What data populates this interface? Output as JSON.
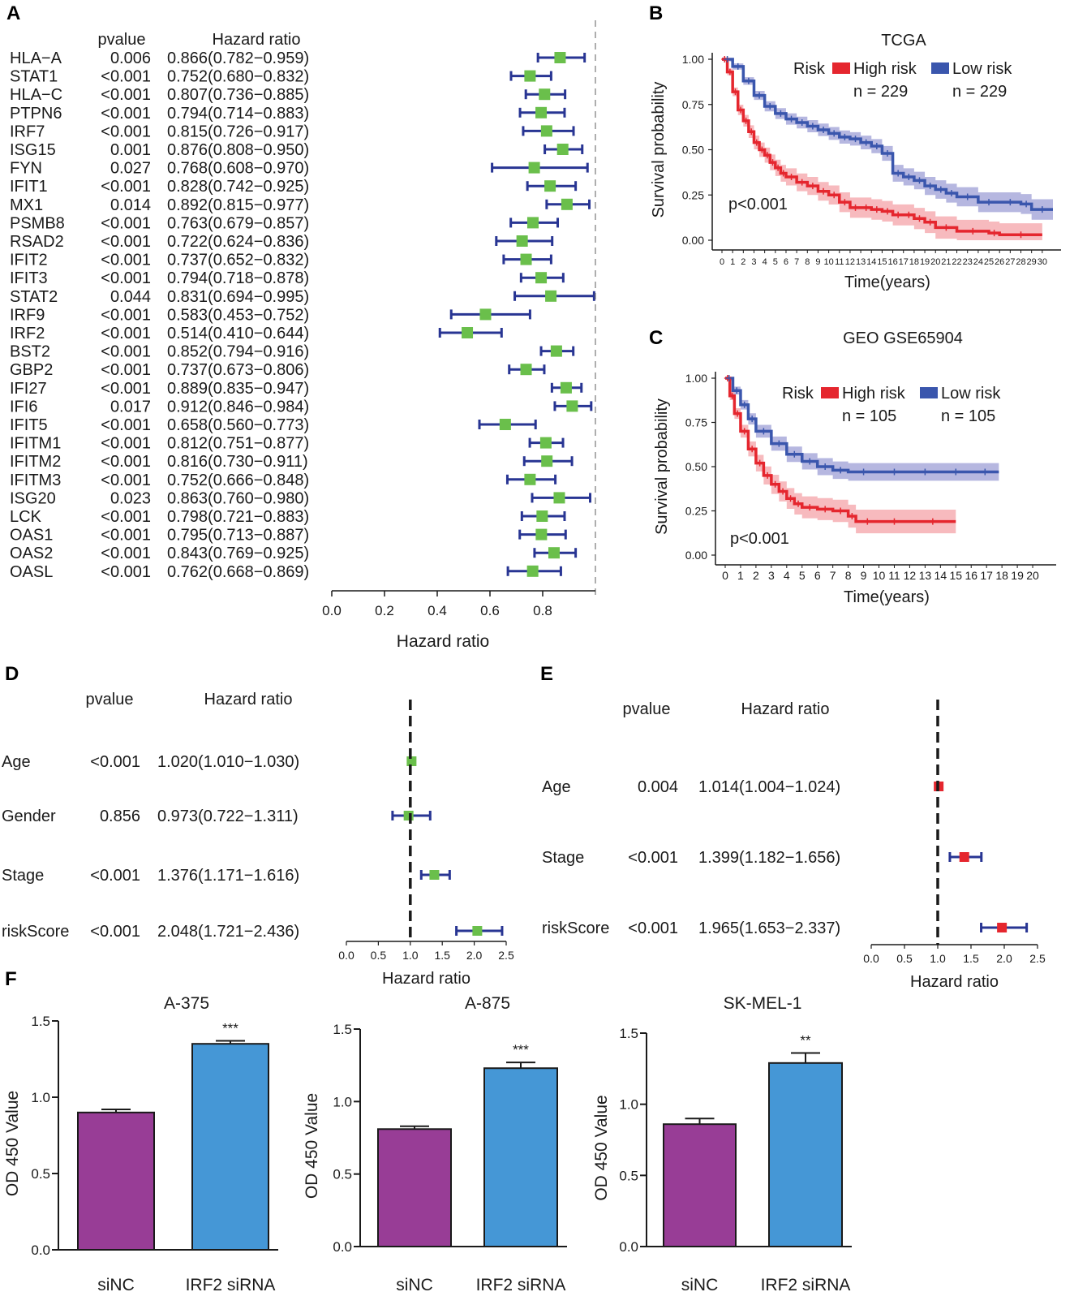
{
  "colors": {
    "axis": "#1a1a1a",
    "ci_line": "#283593",
    "box_green": "#6abf4b",
    "box_red": "#e5262e",
    "high_risk": "#e5262e",
    "high_risk_band": "#f4a3a8",
    "low_risk": "#3a56ad",
    "low_risk_band": "#9d9fd6",
    "bar_sinc": "#983d96",
    "bar_irf2": "#4597d6"
  },
  "panels": {
    "A": {
      "label": "A",
      "col_pvalue": "pvalue",
      "col_hr": "Hazard ratio",
      "xlabel": "Hazard ratio",
      "ticks": [
        "0.0",
        "0.2",
        "0.4",
        "0.6",
        "0.8"
      ],
      "xlim": [
        0.0,
        1.0
      ],
      "ref_line": 1.0,
      "rows": [
        {
          "gene": "HLA−A",
          "p": "0.006",
          "hr_text": "0.866(0.782−0.959)",
          "hr": 0.866,
          "lo": 0.782,
          "hi": 0.959
        },
        {
          "gene": "STAT1",
          "p": "<0.001",
          "hr_text": "0.752(0.680−0.832)",
          "hr": 0.752,
          "lo": 0.68,
          "hi": 0.832
        },
        {
          "gene": "HLA−C",
          "p": "<0.001",
          "hr_text": "0.807(0.736−0.885)",
          "hr": 0.807,
          "lo": 0.736,
          "hi": 0.885
        },
        {
          "gene": "PTPN6",
          "p": "<0.001",
          "hr_text": "0.794(0.714−0.883)",
          "hr": 0.794,
          "lo": 0.714,
          "hi": 0.883
        },
        {
          "gene": "IRF7",
          "p": "<0.001",
          "hr_text": "0.815(0.726−0.917)",
          "hr": 0.815,
          "lo": 0.726,
          "hi": 0.917
        },
        {
          "gene": "ISG15",
          "p": "0.001",
          "hr_text": "0.876(0.808−0.950)",
          "hr": 0.876,
          "lo": 0.808,
          "hi": 0.95
        },
        {
          "gene": "FYN",
          "p": "0.027",
          "hr_text": "0.768(0.608−0.970)",
          "hr": 0.768,
          "lo": 0.608,
          "hi": 0.97
        },
        {
          "gene": "IFIT1",
          "p": "<0.001",
          "hr_text": "0.828(0.742−0.925)",
          "hr": 0.828,
          "lo": 0.742,
          "hi": 0.925
        },
        {
          "gene": "MX1",
          "p": "0.014",
          "hr_text": "0.892(0.815−0.977)",
          "hr": 0.892,
          "lo": 0.815,
          "hi": 0.977
        },
        {
          "gene": "PSMB8",
          "p": "<0.001",
          "hr_text": "0.763(0.679−0.857)",
          "hr": 0.763,
          "lo": 0.679,
          "hi": 0.857
        },
        {
          "gene": "RSAD2",
          "p": "<0.001",
          "hr_text": "0.722(0.624−0.836)",
          "hr": 0.722,
          "lo": 0.624,
          "hi": 0.836
        },
        {
          "gene": "IFIT2",
          "p": "<0.001",
          "hr_text": "0.737(0.652−0.832)",
          "hr": 0.737,
          "lo": 0.652,
          "hi": 0.832
        },
        {
          "gene": "IFIT3",
          "p": "<0.001",
          "hr_text": "0.794(0.718−0.878)",
          "hr": 0.794,
          "lo": 0.718,
          "hi": 0.878
        },
        {
          "gene": "STAT2",
          "p": "0.044",
          "hr_text": "0.831(0.694−0.995)",
          "hr": 0.831,
          "lo": 0.694,
          "hi": 0.995
        },
        {
          "gene": "IRF9",
          "p": "<0.001",
          "hr_text": "0.583(0.453−0.752)",
          "hr": 0.583,
          "lo": 0.453,
          "hi": 0.752
        },
        {
          "gene": "IRF2",
          "p": "<0.001",
          "hr_text": "0.514(0.410−0.644)",
          "hr": 0.514,
          "lo": 0.41,
          "hi": 0.644
        },
        {
          "gene": "BST2",
          "p": "<0.001",
          "hr_text": "0.852(0.794−0.916)",
          "hr": 0.852,
          "lo": 0.794,
          "hi": 0.916
        },
        {
          "gene": "GBP2",
          "p": "<0.001",
          "hr_text": "0.737(0.673−0.806)",
          "hr": 0.737,
          "lo": 0.673,
          "hi": 0.806
        },
        {
          "gene": "IFI27",
          "p": "<0.001",
          "hr_text": "0.889(0.835−0.947)",
          "hr": 0.889,
          "lo": 0.835,
          "hi": 0.947
        },
        {
          "gene": "IFI6",
          "p": "0.017",
          "hr_text": "0.912(0.846−0.984)",
          "hr": 0.912,
          "lo": 0.846,
          "hi": 0.984
        },
        {
          "gene": "IFIT5",
          "p": "<0.001",
          "hr_text": "0.658(0.560−0.773)",
          "hr": 0.658,
          "lo": 0.56,
          "hi": 0.773
        },
        {
          "gene": "IFITM1",
          "p": "<0.001",
          "hr_text": "0.812(0.751−0.877)",
          "hr": 0.812,
          "lo": 0.751,
          "hi": 0.877
        },
        {
          "gene": "IFITM2",
          "p": "<0.001",
          "hr_text": "0.816(0.730−0.911)",
          "hr": 0.816,
          "lo": 0.73,
          "hi": 0.911
        },
        {
          "gene": "IFITM3",
          "p": "<0.001",
          "hr_text": "0.752(0.666−0.848)",
          "hr": 0.752,
          "lo": 0.666,
          "hi": 0.848
        },
        {
          "gene": "ISG20",
          "p": "0.023",
          "hr_text": "0.863(0.760−0.980)",
          "hr": 0.863,
          "lo": 0.76,
          "hi": 0.98
        },
        {
          "gene": "LCK",
          "p": "<0.001",
          "hr_text": "0.798(0.721−0.883)",
          "hr": 0.798,
          "lo": 0.721,
          "hi": 0.883
        },
        {
          "gene": "OAS1",
          "p": "<0.001",
          "hr_text": "0.795(0.713−0.887)",
          "hr": 0.795,
          "lo": 0.713,
          "hi": 0.887
        },
        {
          "gene": "OAS2",
          "p": "<0.001",
          "hr_text": "0.843(0.769−0.925)",
          "hr": 0.843,
          "lo": 0.769,
          "hi": 0.925
        },
        {
          "gene": "OASL",
          "p": "<0.001",
          "hr_text": "0.762(0.668−0.869)",
          "hr": 0.762,
          "lo": 0.668,
          "hi": 0.869
        }
      ]
    },
    "B": {
      "label": "B",
      "title": "TCGA",
      "ylabel": "Survival probability",
      "xlabel": "Time(years)",
      "yticks": [
        "0.00",
        "0.25",
        "0.50",
        "0.75",
        "1.00"
      ],
      "xticks": [
        "0",
        "1",
        "2",
        "3",
        "4",
        "5",
        "6",
        "7",
        "8",
        "9",
        "10",
        "11",
        "12",
        "13",
        "14",
        "15",
        "16",
        "17",
        "18",
        "19",
        "20",
        "21",
        "22",
        "23",
        "24",
        "25",
        "26",
        "27",
        "28",
        "29",
        "30"
      ],
      "xlim": [
        0,
        31
      ],
      "legend_title": "Risk",
      "high_label": "High risk",
      "low_label": "Low risk",
      "high_n": "n = 229",
      "low_n": "n = 229",
      "pvalue": "p<0.001",
      "high_curve": [
        [
          0,
          1
        ],
        [
          0.5,
          0.93
        ],
        [
          1,
          0.82
        ],
        [
          1.5,
          0.72
        ],
        [
          2,
          0.66
        ],
        [
          2.5,
          0.6
        ],
        [
          3,
          0.54
        ],
        [
          3.5,
          0.5
        ],
        [
          4,
          0.47
        ],
        [
          4.5,
          0.43
        ],
        [
          5,
          0.4
        ],
        [
          5.5,
          0.37
        ],
        [
          6,
          0.35
        ],
        [
          7,
          0.32
        ],
        [
          8,
          0.3
        ],
        [
          9,
          0.27
        ],
        [
          10,
          0.25
        ],
        [
          11,
          0.21
        ],
        [
          12,
          0.18
        ],
        [
          13,
          0.18
        ],
        [
          14,
          0.17
        ],
        [
          15,
          0.16
        ],
        [
          16,
          0.14
        ],
        [
          17,
          0.14
        ],
        [
          18,
          0.12
        ],
        [
          19,
          0.1
        ],
        [
          20,
          0.07
        ],
        [
          22,
          0.05
        ],
        [
          25,
          0.04
        ],
        [
          26,
          0.03
        ],
        [
          30,
          0.03
        ]
      ],
      "low_curve": [
        [
          0,
          1
        ],
        [
          1,
          0.96
        ],
        [
          2,
          0.88
        ],
        [
          3,
          0.8
        ],
        [
          4,
          0.74
        ],
        [
          5,
          0.7
        ],
        [
          6,
          0.67
        ],
        [
          7,
          0.65
        ],
        [
          8,
          0.63
        ],
        [
          9,
          0.61
        ],
        [
          10,
          0.59
        ],
        [
          11,
          0.57
        ],
        [
          12,
          0.56
        ],
        [
          13,
          0.54
        ],
        [
          14,
          0.52
        ],
        [
          15,
          0.48
        ],
        [
          16,
          0.37
        ],
        [
          17,
          0.35
        ],
        [
          18,
          0.33
        ],
        [
          19,
          0.3
        ],
        [
          20,
          0.28
        ],
        [
          21,
          0.26
        ],
        [
          22,
          0.24
        ],
        [
          24,
          0.21
        ],
        [
          26,
          0.21
        ],
        [
          28,
          0.2
        ],
        [
          29,
          0.17
        ],
        [
          31,
          0.17
        ]
      ]
    },
    "C": {
      "label": "C",
      "title": "GEO GSE65904",
      "ylabel": "Survival probability",
      "xlabel": "Time(years)",
      "yticks": [
        "0.00",
        "0.25",
        "0.50",
        "0.75",
        "1.00"
      ],
      "xticks": [
        "0",
        "1",
        "2",
        "3",
        "4",
        "5",
        "6",
        "7",
        "8",
        "9",
        "10",
        "11",
        "12",
        "13",
        "14",
        "15",
        "16",
        "17",
        "18",
        "19",
        "20"
      ],
      "xlim": [
        0,
        21
      ],
      "legend_title": "Risk",
      "high_label": "High risk",
      "low_label": "Low risk",
      "high_n": "n = 105",
      "low_n": "n = 105",
      "pvalue": "p<0.001",
      "high_curve": [
        [
          0,
          1
        ],
        [
          0.3,
          0.9
        ],
        [
          0.6,
          0.8
        ],
        [
          1,
          0.7
        ],
        [
          1.5,
          0.6
        ],
        [
          2,
          0.52
        ],
        [
          2.5,
          0.45
        ],
        [
          3,
          0.4
        ],
        [
          3.5,
          0.36
        ],
        [
          4,
          0.32
        ],
        [
          4.5,
          0.29
        ],
        [
          5,
          0.27
        ],
        [
          6,
          0.26
        ],
        [
          7,
          0.25
        ],
        [
          8,
          0.22
        ],
        [
          8.5,
          0.19
        ],
        [
          10,
          0.19
        ],
        [
          12,
          0.19
        ],
        [
          15,
          0.19
        ]
      ],
      "low_curve": [
        [
          0,
          1
        ],
        [
          0.5,
          0.93
        ],
        [
          1,
          0.85
        ],
        [
          1.5,
          0.77
        ],
        [
          2,
          0.7
        ],
        [
          3,
          0.63
        ],
        [
          4,
          0.57
        ],
        [
          5,
          0.53
        ],
        [
          6,
          0.5
        ],
        [
          7,
          0.48
        ],
        [
          8,
          0.47
        ],
        [
          10,
          0.47
        ],
        [
          12,
          0.47
        ],
        [
          14,
          0.47
        ],
        [
          16,
          0.47
        ],
        [
          17.8,
          0.47
        ]
      ]
    },
    "D": {
      "label": "D",
      "col_pvalue": "pvalue",
      "col_hr": "Hazard ratio",
      "xlabel": "Hazard ratio",
      "ticks": [
        "0.0",
        "0.5",
        "1.0",
        "1.5",
        "2.0",
        "2.5"
      ],
      "xlim": [
        0,
        2.5
      ],
      "ref_line": 1.0,
      "rows": [
        {
          "var": "Age",
          "p": "<0.001",
          "hr_text": "1.020(1.010−1.030)",
          "hr": 1.02,
          "lo": 1.01,
          "hi": 1.03
        },
        {
          "var": "Gender",
          "p": "0.856",
          "hr_text": "0.973(0.722−1.311)",
          "hr": 0.973,
          "lo": 0.722,
          "hi": 1.311
        },
        {
          "var": "Stage",
          "p": "<0.001",
          "hr_text": "1.376(1.171−1.616)",
          "hr": 1.376,
          "lo": 1.171,
          "hi": 1.616
        },
        {
          "var": "riskScore",
          "p": "<0.001",
          "hr_text": "2.048(1.721−2.436)",
          "hr": 2.048,
          "lo": 1.721,
          "hi": 2.436
        }
      ]
    },
    "E": {
      "label": "E",
      "col_pvalue": "pvalue",
      "col_hr": "Hazard ratio",
      "xlabel": "Hazard ratio",
      "ticks": [
        "0.0",
        "0.5",
        "1.0",
        "1.5",
        "2.0",
        "2.5"
      ],
      "xlim": [
        0,
        2.5
      ],
      "ref_line": 1.0,
      "rows": [
        {
          "var": "Age",
          "p": "0.004",
          "hr_text": "1.014(1.004−1.024)",
          "hr": 1.014,
          "lo": 1.004,
          "hi": 1.024
        },
        {
          "var": "Stage",
          "p": "<0.001",
          "hr_text": "1.399(1.182−1.656)",
          "hr": 1.399,
          "lo": 1.182,
          "hi": 1.656
        },
        {
          "var": "riskScore",
          "p": "<0.001",
          "hr_text": "1.965(1.653−2.337)",
          "hr": 1.965,
          "lo": 1.653,
          "hi": 2.337
        }
      ]
    },
    "F": {
      "label": "F",
      "ylabel": "OD 450 Value",
      "categories": [
        "siNC",
        "IRF2 siRNA"
      ],
      "charts": [
        {
          "title": "A-375",
          "yticks": [
            "0.0",
            "0.5",
            "1.0",
            "1.5"
          ],
          "values": [
            0.9,
            1.35
          ],
          "err": [
            0.02,
            0.02
          ],
          "sig": "***"
        },
        {
          "title": "A-875",
          "yticks": [
            "0.0",
            "0.5",
            "1.0",
            "1.5"
          ],
          "values": [
            0.81,
            1.23
          ],
          "err": [
            0.02,
            0.04
          ],
          "sig": "***"
        },
        {
          "title": "SK-MEL-1",
          "yticks": [
            "0.0",
            "0.5",
            "1.0",
            "1.5"
          ],
          "values": [
            0.86,
            1.29
          ],
          "err": [
            0.04,
            0.07
          ],
          "sig": "**"
        }
      ]
    }
  },
  "chart_data": [
    {
      "type": "forest",
      "panel": "A",
      "title": "",
      "xlabel": "Hazard ratio",
      "xlim": [
        0,
        1
      ],
      "categories": [
        "HLA−A",
        "STAT1",
        "HLA−C",
        "PTPN6",
        "IRF7",
        "ISG15",
        "FYN",
        "IFIT1",
        "MX1",
        "PSMB8",
        "RSAD2",
        "IFIT2",
        "IFIT3",
        "STAT2",
        "IRF9",
        "IRF2",
        "BST2",
        "GBP2",
        "IFI27",
        "IFI6",
        "IFIT5",
        "IFITM1",
        "IFITM2",
        "IFITM3",
        "ISG20",
        "LCK",
        "OAS1",
        "OAS2",
        "OASL"
      ],
      "values": [
        0.866,
        0.752,
        0.807,
        0.794,
        0.815,
        0.876,
        0.768,
        0.828,
        0.892,
        0.763,
        0.722,
        0.737,
        0.794,
        0.831,
        0.583,
        0.514,
        0.852,
        0.737,
        0.889,
        0.912,
        0.658,
        0.812,
        0.816,
        0.752,
        0.863,
        0.798,
        0.795,
        0.843,
        0.762
      ]
    },
    {
      "type": "line",
      "panel": "B",
      "title": "TCGA",
      "xlabel": "Time(years)",
      "ylabel": "Survival probability",
      "ylim": [
        0,
        1
      ],
      "series": [
        {
          "name": "High risk"
        },
        {
          "name": "Low risk"
        }
      ]
    },
    {
      "type": "line",
      "panel": "C",
      "title": "GEO GSE65904",
      "xlabel": "Time(years)",
      "ylabel": "Survival probability",
      "ylim": [
        0,
        1
      ],
      "series": [
        {
          "name": "High risk"
        },
        {
          "name": "Low risk"
        }
      ]
    },
    {
      "type": "forest",
      "panel": "D",
      "xlabel": "Hazard ratio",
      "categories": [
        "Age",
        "Gender",
        "Stage",
        "riskScore"
      ],
      "values": [
        1.02,
        0.973,
        1.376,
        2.048
      ]
    },
    {
      "type": "forest",
      "panel": "E",
      "xlabel": "Hazard ratio",
      "categories": [
        "Age",
        "Stage",
        "riskScore"
      ],
      "values": [
        1.014,
        1.399,
        1.965
      ]
    },
    {
      "type": "bar",
      "panel": "F",
      "title": "A-375",
      "categories": [
        "siNC",
        "IRF2 siRNA"
      ],
      "values": [
        0.9,
        1.35
      ],
      "ylabel": "OD 450 Value",
      "ylim": [
        0,
        1.5
      ]
    },
    {
      "type": "bar",
      "panel": "F",
      "title": "A-875",
      "categories": [
        "siNC",
        "IRF2 siRNA"
      ],
      "values": [
        0.81,
        1.23
      ],
      "ylabel": "OD 450 Value",
      "ylim": [
        0,
        1.5
      ]
    },
    {
      "type": "bar",
      "panel": "F",
      "title": "SK-MEL-1",
      "categories": [
        "siNC",
        "IRF2 siRNA"
      ],
      "values": [
        0.86,
        1.29
      ],
      "ylabel": "OD 450 Value",
      "ylim": [
        0,
        1.5
      ]
    }
  ]
}
